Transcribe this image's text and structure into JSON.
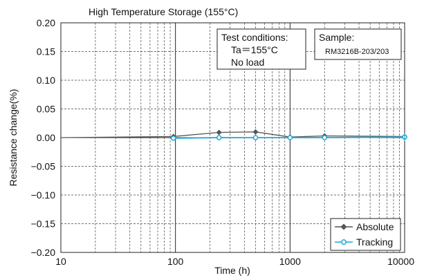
{
  "chart_data": {
    "type": "line",
    "title": "High Temperature Storage (155°C)",
    "xlabel": "Time (h)",
    "ylabel": "Resistance change(%)",
    "x_scale": "log",
    "xlim": [
      10,
      10000
    ],
    "ylim": [
      -0.2,
      0.2
    ],
    "x_ticks": [
      "10",
      "100",
      "1000",
      "10000"
    ],
    "y_ticks": [
      "0.20",
      "0.15",
      "0.10",
      "0.05",
      "0.00",
      "−0.05",
      "−0.10",
      "−0.15",
      "−0.20"
    ],
    "grid": true,
    "legend_position": "bottom-right",
    "series": [
      {
        "name": "Absolute",
        "color": "#555555",
        "marker": "diamond",
        "x": [
          10,
          96,
          240,
          500,
          1000,
          2000,
          10000
        ],
        "y": [
          0.0,
          0.002,
          0.009,
          0.01,
          0.001,
          0.003,
          0.002
        ]
      },
      {
        "name": "Tracking",
        "color": "#1aa7d8",
        "marker": "circle",
        "x": [
          96,
          240,
          500,
          1000,
          2000,
          10000
        ],
        "y": [
          -0.001,
          0.0,
          0.0,
          0.0,
          0.0,
          0.001
        ]
      }
    ],
    "annotations": [
      {
        "lines": [
          "Test conditions:",
          "Ta＝155°C",
          "No load"
        ]
      },
      {
        "lines": [
          "Sample:",
          "RM3216B-203/203"
        ]
      }
    ]
  }
}
